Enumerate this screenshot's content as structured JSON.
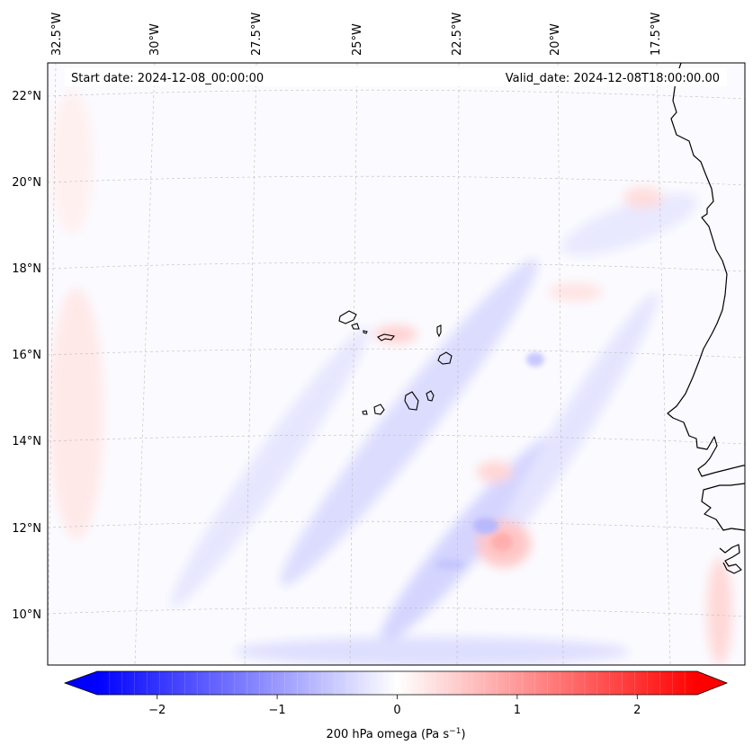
{
  "map": {
    "projection": "Lambert conformal",
    "region": "Eastern tropical Atlantic / Cape Verde / West Africa",
    "field": "200 hPa omega",
    "start_label": "Start date: 2024-12-08_00:00:00",
    "valid_label": "Valid_date: 2024-12-08T18:00:00.00",
    "lon_labels": [
      "32.5°W",
      "30°W",
      "27.5°W",
      "25°W",
      "22.5°W",
      "20°W",
      "17.5°W"
    ],
    "lat_labels": [
      "22°N",
      "20°N",
      "18°N",
      "16°N",
      "14°N",
      "12°N",
      "10°N"
    ],
    "gridlines": "dashed",
    "coastline_color": "#000000"
  },
  "colorbar": {
    "label_main": "200 hPa omega (Pa s",
    "label_sup": "−1",
    "label_end": ")",
    "ticks": [
      "−2",
      "−1",
      "0",
      "1",
      "2"
    ],
    "tick_values": [
      -2,
      -1,
      0,
      1,
      2
    ],
    "vmin": -2.5,
    "vmax": 2.5,
    "levels": 48,
    "cmap": "bwr",
    "extend": "both",
    "colors": {
      "low": "#0000ff",
      "mid": "#ffffff",
      "high": "#ff0000"
    }
  },
  "chart_data": {
    "type": "heatmap",
    "title": "",
    "field": "200 hPa omega",
    "units": "Pa s^-1",
    "xlabel": "",
    "ylabel": "",
    "x_ticks": [
      "32.5°W",
      "30°W",
      "27.5°W",
      "25°W",
      "22.5°W",
      "20°W",
      "17.5°W"
    ],
    "y_ticks": [
      "22°N",
      "20°N",
      "18°N",
      "16°N",
      "14°N",
      "12°N",
      "10°N"
    ],
    "color_range": [
      -2.5,
      2.5
    ],
    "features": [
      {
        "name": "ascent band",
        "value_approx": -0.6,
        "lon_range": [
          "25°W",
          "20°W"
        ],
        "lat_range": [
          "11°N",
          "16°N"
        ]
      },
      {
        "name": "descent cell",
        "value_approx": 1.0,
        "lon": "21.5°W",
        "lat": "11.5°N"
      },
      {
        "name": "descent patch",
        "value_approx": 0.5,
        "lon": "23°W",
        "lat": "16.2°N"
      },
      {
        "name": "weak background",
        "value_approx": 0.0
      }
    ]
  }
}
